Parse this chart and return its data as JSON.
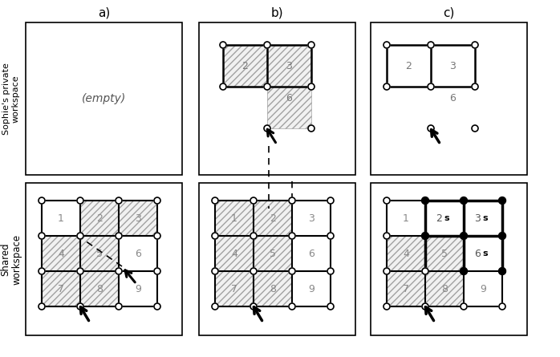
{
  "title_a": "a)",
  "title_b": "b)",
  "title_c": "c)",
  "ylabel_top": "Sophie's private\nworkspace",
  "ylabel_bottom": "Shared\nworkspace",
  "background_color": "#ffffff"
}
